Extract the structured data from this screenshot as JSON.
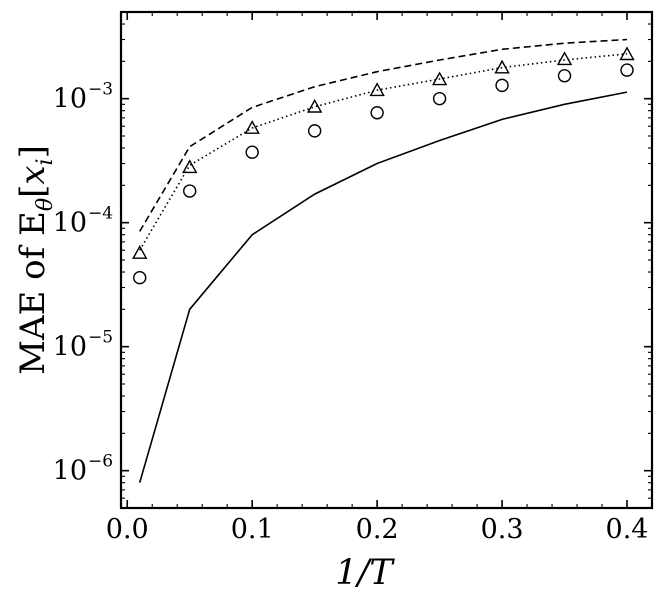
{
  "chart_data": {
    "type": "line",
    "xlabel": "1/T",
    "ylabel": "MAE of E",
    "ylabel_sub": "θ",
    "ylabel_bracket": "[",
    "ylabel_var": "x",
    "ylabel_var_sub": "i",
    "ylabel_bracket_close": "]",
    "xlim": [
      -0.005,
      0.42
    ],
    "ylim": [
      5e-07,
      0.005
    ],
    "yscale": "log",
    "grid": false,
    "x_ticks": [
      "0.0",
      "0.1",
      "0.2",
      "0.3",
      "0.4"
    ],
    "x_tick_values": [
      0.0,
      0.1,
      0.2,
      0.3,
      0.4
    ],
    "y_ticks": [
      {
        "base": "10",
        "exp": "−6",
        "value": 1e-06
      },
      {
        "base": "10",
        "exp": "−5",
        "value": 1e-05
      },
      {
        "base": "10",
        "exp": "−4",
        "value": 0.0001
      },
      {
        "base": "10",
        "exp": "−3",
        "value": 0.001
      }
    ],
    "x": [
      0.01,
      0.05,
      0.1,
      0.15,
      0.2,
      0.25,
      0.3,
      0.35,
      0.4
    ],
    "series": [
      {
        "style": "solid",
        "values": [
          8e-07,
          2e-05,
          8e-05,
          0.00017,
          0.0003,
          0.00046,
          0.00068,
          0.0009,
          0.00113
        ]
      },
      {
        "style": "dashed",
        "values": [
          8.5e-05,
          0.00041,
          0.00085,
          0.00125,
          0.00165,
          0.00205,
          0.0025,
          0.0028,
          0.003
        ]
      },
      {
        "style": "dotted",
        "values": [
          6e-05,
          0.00029,
          0.00058,
          0.00086,
          0.00117,
          0.00144,
          0.00178,
          0.00205,
          0.0023
        ]
      },
      {
        "style": "triangle",
        "values": [
          5.7e-05,
          0.00028,
          0.00058,
          0.00086,
          0.00117,
          0.00143,
          0.00178,
          0.00208,
          0.00228
        ]
      },
      {
        "style": "circle",
        "values": [
          3.6e-05,
          0.00018,
          0.00037,
          0.00055,
          0.00077,
          0.001,
          0.00128,
          0.00153,
          0.0017
        ]
      }
    ]
  }
}
